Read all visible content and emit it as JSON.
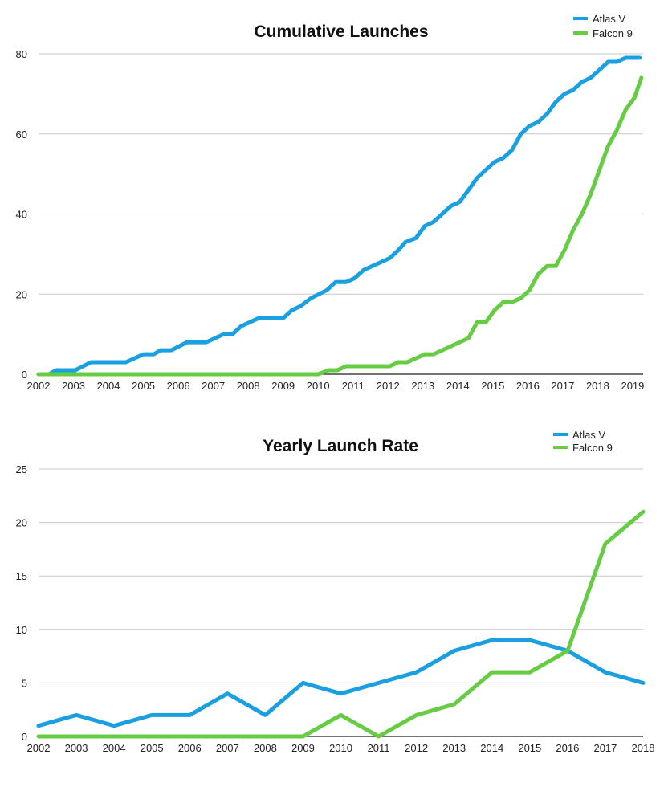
{
  "chart_data": [
    {
      "type": "line",
      "title": "Cumulative Launches",
      "xlabel": "",
      "ylabel": "",
      "xlim": [
        2002,
        2019.3
      ],
      "ylim": [
        0,
        80
      ],
      "xticks": [
        "2002",
        "2003",
        "2004",
        "2005",
        "2006",
        "2007",
        "2008",
        "2009",
        "2010",
        "2011",
        "2012",
        "2013",
        "2014",
        "2015",
        "2016",
        "2017",
        "2018",
        "2019"
      ],
      "yticks": [
        "0",
        "20",
        "40",
        "60",
        "80"
      ],
      "grid": true,
      "legend": "top-right",
      "series": [
        {
          "name": "Atlas V",
          "color": "#1a9fe0",
          "points": [
            [
              2002,
              0
            ],
            [
              2002.3,
              0
            ],
            [
              2002.5,
              1
            ],
            [
              2003.05,
              1
            ],
            [
              2003.5,
              3
            ],
            [
              2004.5,
              3
            ],
            [
              2005,
              5
            ],
            [
              2005.3,
              5
            ],
            [
              2005.5,
              6
            ],
            [
              2005.8,
              6
            ],
            [
              2006.25,
              8
            ],
            [
              2006.8,
              8
            ],
            [
              2007.3,
              10
            ],
            [
              2007.55,
              10
            ],
            [
              2007.8,
              12
            ],
            [
              2008.3,
              14
            ],
            [
              2009,
              14
            ],
            [
              2009.25,
              16
            ],
            [
              2009.5,
              17
            ],
            [
              2009.8,
              19
            ],
            [
              2010.25,
              21
            ],
            [
              2010.5,
              23
            ],
            [
              2010.8,
              23
            ],
            [
              2011.05,
              24
            ],
            [
              2011.3,
              26
            ],
            [
              2011.55,
              27
            ],
            [
              2011.8,
              28
            ],
            [
              2012.05,
              29
            ],
            [
              2012.3,
              31
            ],
            [
              2012.5,
              33
            ],
            [
              2012.8,
              34
            ],
            [
              2013.05,
              37
            ],
            [
              2013.3,
              38
            ],
            [
              2013.55,
              40
            ],
            [
              2013.8,
              42
            ],
            [
              2014.05,
              43
            ],
            [
              2014.3,
              46
            ],
            [
              2014.55,
              49
            ],
            [
              2014.8,
              51
            ],
            [
              2015.05,
              53
            ],
            [
              2015.3,
              54
            ],
            [
              2015.55,
              56
            ],
            [
              2015.8,
              60
            ],
            [
              2016.05,
              62
            ],
            [
              2016.3,
              63
            ],
            [
              2016.55,
              65
            ],
            [
              2016.8,
              68
            ],
            [
              2017.05,
              70
            ],
            [
              2017.3,
              71
            ],
            [
              2017.55,
              73
            ],
            [
              2017.8,
              74
            ],
            [
              2018.05,
              76
            ],
            [
              2018.3,
              78
            ],
            [
              2018.55,
              78
            ],
            [
              2018.8,
              79
            ],
            [
              2019.2,
              79
            ]
          ]
        },
        {
          "name": "Falcon 9",
          "color": "#66cc44",
          "points": [
            [
              2002,
              0
            ],
            [
              2010,
              0
            ],
            [
              2010.3,
              1
            ],
            [
              2010.55,
              1
            ],
            [
              2010.8,
              2
            ],
            [
              2012.05,
              2
            ],
            [
              2012.3,
              3
            ],
            [
              2012.55,
              3
            ],
            [
              2013.05,
              5
            ],
            [
              2013.3,
              5
            ],
            [
              2013.55,
              6
            ],
            [
              2013.8,
              7
            ],
            [
              2014.05,
              8
            ],
            [
              2014.3,
              9
            ],
            [
              2014.55,
              13
            ],
            [
              2014.8,
              13
            ],
            [
              2015.05,
              16
            ],
            [
              2015.3,
              18
            ],
            [
              2015.55,
              18
            ],
            [
              2015.8,
              19
            ],
            [
              2016.05,
              21
            ],
            [
              2016.3,
              25
            ],
            [
              2016.55,
              27
            ],
            [
              2016.8,
              27
            ],
            [
              2017.05,
              31
            ],
            [
              2017.3,
              36
            ],
            [
              2017.55,
              40
            ],
            [
              2017.8,
              45
            ],
            [
              2018.05,
              51
            ],
            [
              2018.3,
              57
            ],
            [
              2018.55,
              61
            ],
            [
              2018.8,
              66
            ],
            [
              2019.05,
              69
            ],
            [
              2019.25,
              74
            ]
          ]
        }
      ]
    },
    {
      "type": "line",
      "title": "Yearly Launch Rate",
      "xlabel": "",
      "ylabel": "",
      "xlim": [
        2002,
        2018
      ],
      "ylim": [
        0,
        25
      ],
      "xticks": [
        "2002",
        "2003",
        "2004",
        "2005",
        "2006",
        "2007",
        "2008",
        "2009",
        "2010",
        "2011",
        "2012",
        "2013",
        "2014",
        "2015",
        "2016",
        "2017",
        "2018"
      ],
      "yticks": [
        "0",
        "5",
        "10",
        "15",
        "20",
        "25"
      ],
      "grid": true,
      "legend": "top-right",
      "series": [
        {
          "name": "Atlas V",
          "color": "#1a9fe0",
          "x": [
            2002,
            2003,
            2004,
            2005,
            2006,
            2007,
            2008,
            2009,
            2010,
            2011,
            2012,
            2013,
            2014,
            2015,
            2016,
            2017,
            2018
          ],
          "values": [
            1,
            2,
            1,
            2,
            2,
            4,
            2,
            5,
            4,
            5,
            6,
            8,
            9,
            9,
            8,
            6,
            5
          ]
        },
        {
          "name": "Falcon 9",
          "color": "#66cc44",
          "x": [
            2002,
            2003,
            2004,
            2005,
            2006,
            2007,
            2008,
            2009,
            2010,
            2011,
            2012,
            2013,
            2014,
            2015,
            2016,
            2017,
            2018
          ],
          "values": [
            0,
            0,
            0,
            0,
            0,
            0,
            0,
            0,
            2,
            0,
            2,
            3,
            6,
            6,
            8,
            18,
            21
          ]
        }
      ]
    }
  ]
}
